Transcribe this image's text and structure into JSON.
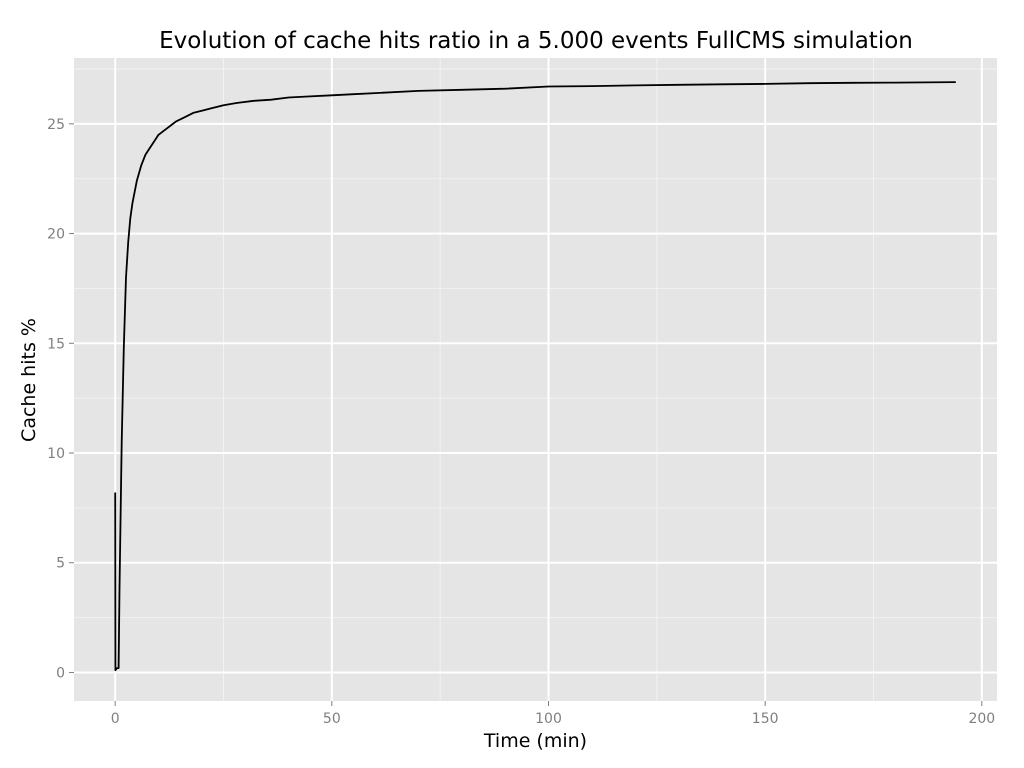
{
  "chart_data": {
    "type": "line",
    "title": "Evolution of cache hits ratio in a 5.000 events FullCMS simulation",
    "xlabel": "Time (min)",
    "ylabel": "Cache hits %",
    "xlim": [
      -9.5,
      203.5
    ],
    "ylim": [
      -1.3,
      28.0
    ],
    "xticks": [
      0,
      50,
      100,
      150,
      200
    ],
    "yticks": [
      0,
      5,
      10,
      15,
      20,
      25
    ],
    "grid": true,
    "background": "#e5e5e5",
    "grid_major_color": "#ffffff",
    "grid_minor_color": "#f2f2f2",
    "line_color": "#000000",
    "series": [
      {
        "x": [
          0.0,
          0.05,
          0.4,
          0.8,
          1.0,
          1.5,
          2.0,
          2.5,
          3.0,
          3.5,
          4.0,
          5.0,
          6.0,
          7.0,
          8.0,
          9.0,
          10.0,
          12.0,
          14.0,
          16.0,
          18.0,
          20.0,
          22.0,
          25.0,
          28.0,
          32.0,
          36.0,
          40.0,
          45.0,
          50.0,
          55.0,
          60.0,
          70.0,
          80.0,
          90.0,
          100.0,
          110.0,
          120.0,
          130.0,
          140.0,
          150.0,
          160.0,
          170.0,
          180.0,
          194.0
        ],
        "y": [
          8.2,
          0.1,
          0.2,
          0.2,
          3.8,
          10.5,
          14.8,
          18.0,
          19.6,
          20.7,
          21.4,
          22.4,
          23.1,
          23.6,
          23.9,
          24.2,
          24.5,
          24.8,
          25.1,
          25.3,
          25.5,
          25.6,
          25.7,
          25.85,
          25.95,
          26.05,
          26.1,
          26.2,
          26.25,
          26.3,
          26.35,
          26.4,
          26.5,
          26.55,
          26.6,
          26.7,
          26.72,
          26.75,
          26.78,
          26.8,
          26.82,
          26.85,
          26.87,
          26.88,
          26.9
        ]
      }
    ]
  }
}
